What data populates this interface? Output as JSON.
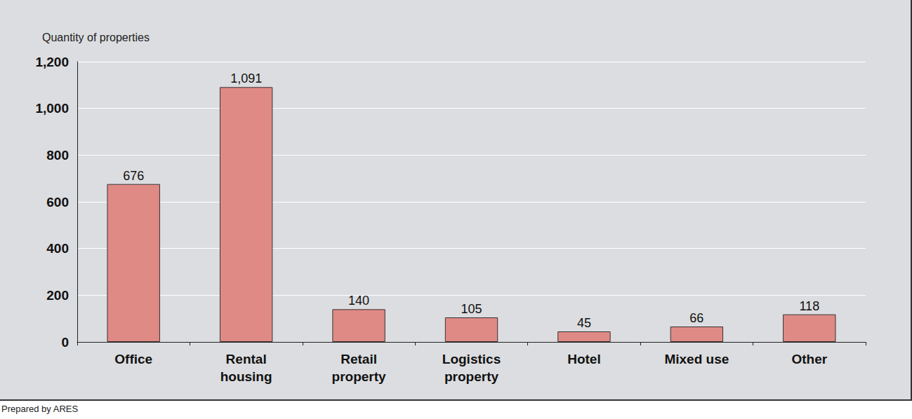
{
  "chart_data": {
    "type": "bar",
    "y_label": "Quantity of properties",
    "source": "Prepared by ARES",
    "categories": [
      "Office",
      "Rental\nhousing",
      "Retail\nproperty",
      "Logistics\nproperty",
      "Hotel",
      "Mixed use",
      "Other"
    ],
    "values": [
      676,
      1091,
      140,
      105,
      45,
      66,
      118
    ],
    "value_labels": [
      "676",
      "1,091",
      "140",
      "105",
      "45",
      "66",
      "118"
    ],
    "color": "#e08a85",
    "ylim": [
      0,
      1200
    ],
    "yticks": [
      0,
      200,
      400,
      600,
      800,
      {
        "value": 1000,
        "label": "1,000"
      },
      {
        "value": 1200,
        "label": "1,200"
      }
    ],
    "grid": true,
    "data_labels": true
  }
}
